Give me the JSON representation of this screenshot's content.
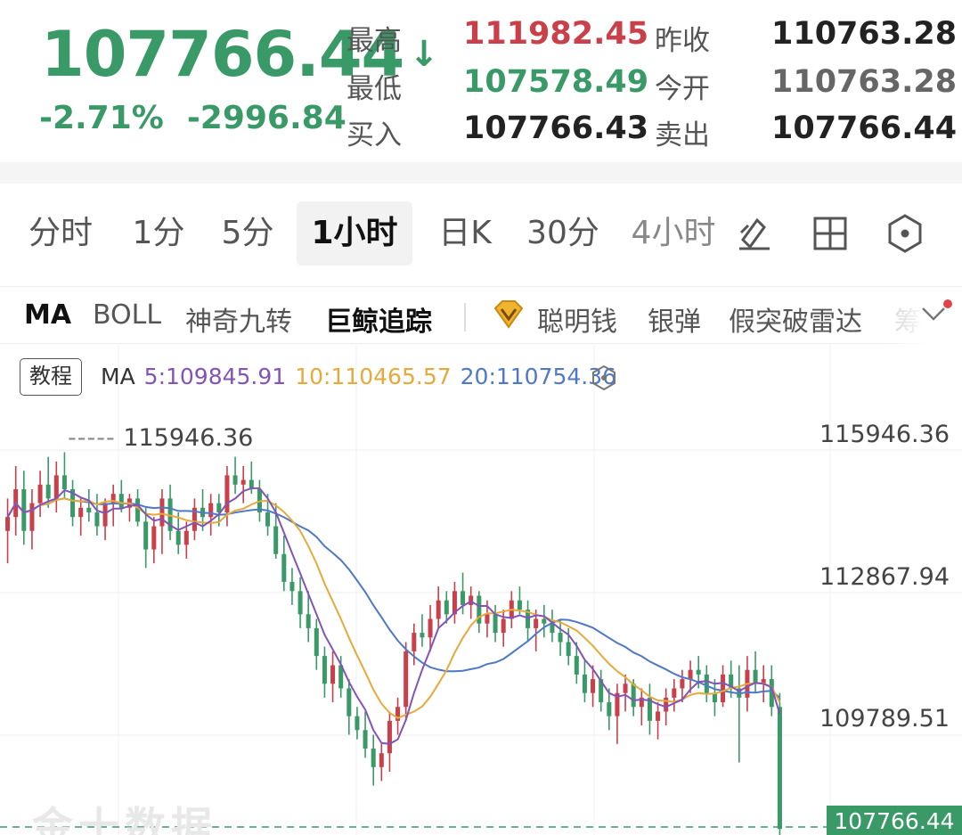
{
  "quote": {
    "last_price": "107766.44",
    "change_pct": "-2.71%",
    "change_abs": "-2996.84",
    "arrow": "↓",
    "high_label": "最高",
    "high_value": "111982.45",
    "low_label": "最低",
    "low_value": "107578.49",
    "bid_label": "买入",
    "bid_value": "107766.43",
    "prev_close_label": "昨收",
    "prev_close_value": "110763.28",
    "open_label": "今开",
    "open_value": "110763.28",
    "ask_label": "卖出",
    "ask_value": "107766.44"
  },
  "tabs": [
    "分时",
    "1分",
    "5分",
    "1小时",
    "日K",
    "30分",
    "4小时"
  ],
  "active_tab": "1小时",
  "tab_icons": [
    "draw-tool-icon",
    "layout-grid-icon",
    "settings-hex-icon"
  ],
  "indicators": {
    "ma": "MA",
    "boll": "BOLL",
    "magic_nine": "神奇九转",
    "whale_tracking": "巨鲸追踪",
    "smart_money": "聪明钱",
    "silver_bullet": "银弹",
    "fake_breakout": "假突破雷达",
    "more_truncated": "筹"
  },
  "chart_header": {
    "tutorial": "教程",
    "ma_label": "MA",
    "ma5": "5:109845.91",
    "ma10": "10:110465.57",
    "ma20": "20:110754.36"
  },
  "axis": {
    "y_top": "115946.36",
    "y_mid": "112867.94",
    "y_low": "109789.51",
    "max_marker": "115946.36",
    "last_tag": "107766.44"
  },
  "watermark": "金十数据",
  "colors": {
    "up": "#c9404b",
    "down": "#3a9a67",
    "ma5": "#8253b8",
    "ma10": "#e7a93a",
    "ma20": "#4f78c7"
  },
  "chart_data": {
    "type": "candlestick",
    "ylim": [
      106500,
      117000
    ],
    "yticks": [
      115946.36,
      112867.94,
      109789.51
    ],
    "candles": [
      [
        114200,
        114900,
        113500,
        114500
      ],
      [
        114500,
        115600,
        114100,
        115100
      ],
      [
        115100,
        115500,
        113900,
        114200
      ],
      [
        114200,
        115100,
        113800,
        114800
      ],
      [
        114800,
        115500,
        114500,
        115200
      ],
      [
        115200,
        115800,
        114700,
        114900
      ],
      [
        114900,
        115700,
        114600,
        115400
      ],
      [
        115400,
        115900,
        114900,
        115100
      ],
      [
        115100,
        115300,
        114300,
        114500
      ],
      [
        114500,
        114900,
        114100,
        114700
      ],
      [
        114700,
        115100,
        114400,
        114600
      ],
      [
        114600,
        115000,
        114100,
        114300
      ],
      [
        114300,
        114900,
        114000,
        114800
      ],
      [
        114800,
        115200,
        114300,
        115000
      ],
      [
        115000,
        115300,
        114600,
        114700
      ],
      [
        114700,
        115000,
        114400,
        114900
      ],
      [
        114900,
        115100,
        114300,
        114400
      ],
      [
        114400,
        114700,
        113400,
        113800
      ],
      [
        113800,
        114500,
        113500,
        114300
      ],
      [
        114300,
        115100,
        113700,
        114900
      ],
      [
        114900,
        115200,
        114000,
        114200
      ],
      [
        114200,
        114600,
        113700,
        113900
      ],
      [
        113900,
        114400,
        113600,
        114200
      ],
      [
        114200,
        114900,
        114000,
        114700
      ],
      [
        114700,
        115100,
        114200,
        114500
      ],
      [
        114500,
        115000,
        114100,
        114800
      ],
      [
        114800,
        115000,
        114300,
        114600
      ],
      [
        114600,
        115600,
        114300,
        115400
      ],
      [
        115400,
        115800,
        115000,
        115200
      ],
      [
        115200,
        115600,
        114800,
        115300
      ],
      [
        115300,
        115700,
        115000,
        115100
      ],
      [
        115100,
        115300,
        114400,
        114600
      ],
      [
        114600,
        115000,
        114100,
        114300
      ],
      [
        114300,
        114800,
        113600,
        113700
      ],
      [
        113700,
        114100,
        112900,
        113100
      ],
      [
        113100,
        113400,
        112600,
        112900
      ],
      [
        112900,
        113200,
        112100,
        112400
      ],
      [
        112400,
        112900,
        111800,
        112100
      ],
      [
        112100,
        112300,
        111200,
        111500
      ],
      [
        111500,
        111700,
        110600,
        110900
      ],
      [
        110900,
        111600,
        110500,
        111300
      ],
      [
        111300,
        111500,
        110600,
        110800
      ],
      [
        110800,
        111000,
        109800,
        110200
      ],
      [
        110200,
        110400,
        109700,
        109900
      ],
      [
        109900,
        110300,
        109300,
        109500
      ],
      [
        109500,
        109800,
        108700,
        109100
      ],
      [
        109100,
        109600,
        108800,
        109400
      ],
      [
        109400,
        110300,
        109000,
        110100
      ],
      [
        110100,
        110600,
        109800,
        110400
      ],
      [
        110400,
        111800,
        110100,
        111600
      ],
      [
        111600,
        112200,
        111300,
        112000
      ],
      [
        112000,
        112400,
        111700,
        111900
      ],
      [
        111900,
        112600,
        111600,
        112300
      ],
      [
        112300,
        113000,
        112100,
        112700
      ],
      [
        112700,
        112900,
        112200,
        112400
      ],
      [
        112400,
        113100,
        112200,
        112900
      ],
      [
        112900,
        113300,
        112400,
        112600
      ],
      [
        112600,
        113000,
        112300,
        112800
      ],
      [
        112800,
        112900,
        112000,
        112200
      ],
      [
        112200,
        112700,
        111900,
        112400
      ],
      [
        112400,
        112600,
        111800,
        112000
      ],
      [
        112000,
        112500,
        111700,
        112300
      ],
      [
        112300,
        112900,
        112100,
        112700
      ],
      [
        112700,
        113000,
        112400,
        112500
      ],
      [
        112500,
        112700,
        111800,
        112100
      ],
      [
        112100,
        112500,
        111600,
        112300
      ],
      [
        112300,
        112600,
        111900,
        112200
      ],
      [
        112200,
        112500,
        111800,
        112000
      ],
      [
        112000,
        112300,
        111500,
        111800
      ],
      [
        111800,
        112100,
        111300,
        111500
      ],
      [
        111500,
        111800,
        110900,
        111100
      ],
      [
        111100,
        111400,
        110500,
        110700
      ],
      [
        110700,
        111300,
        110400,
        111000
      ],
      [
        111000,
        111200,
        110300,
        110500
      ],
      [
        110500,
        110800,
        109900,
        110200
      ],
      [
        110200,
        110900,
        109600,
        110700
      ],
      [
        110700,
        111100,
        110300,
        110900
      ],
      [
        110900,
        111000,
        110200,
        110400
      ],
      [
        110400,
        110800,
        110000,
        110600
      ],
      [
        110600,
        110900,
        109800,
        110100
      ],
      [
        110100,
        110500,
        109700,
        110300
      ],
      [
        110300,
        110800,
        110000,
        110600
      ],
      [
        110600,
        111000,
        110300,
        110800
      ],
      [
        110800,
        111200,
        110500,
        111000
      ],
      [
        111000,
        111400,
        110700,
        111200
      ],
      [
        111200,
        111500,
        110800,
        111100
      ],
      [
        111100,
        111300,
        110500,
        110700
      ],
      [
        110700,
        111000,
        110200,
        110500
      ],
      [
        110500,
        111300,
        110400,
        111100
      ],
      [
        111100,
        111400,
        110600,
        110800
      ],
      [
        110800,
        111300,
        109200,
        110600
      ],
      [
        110600,
        111500,
        110300,
        111200
      ],
      [
        111200,
        111600,
        110700,
        110900
      ],
      [
        110900,
        111300,
        110500,
        111000
      ],
      [
        111000,
        111300,
        110200,
        110400
      ],
      [
        110400,
        110700,
        107578,
        107766
      ]
    ]
  }
}
